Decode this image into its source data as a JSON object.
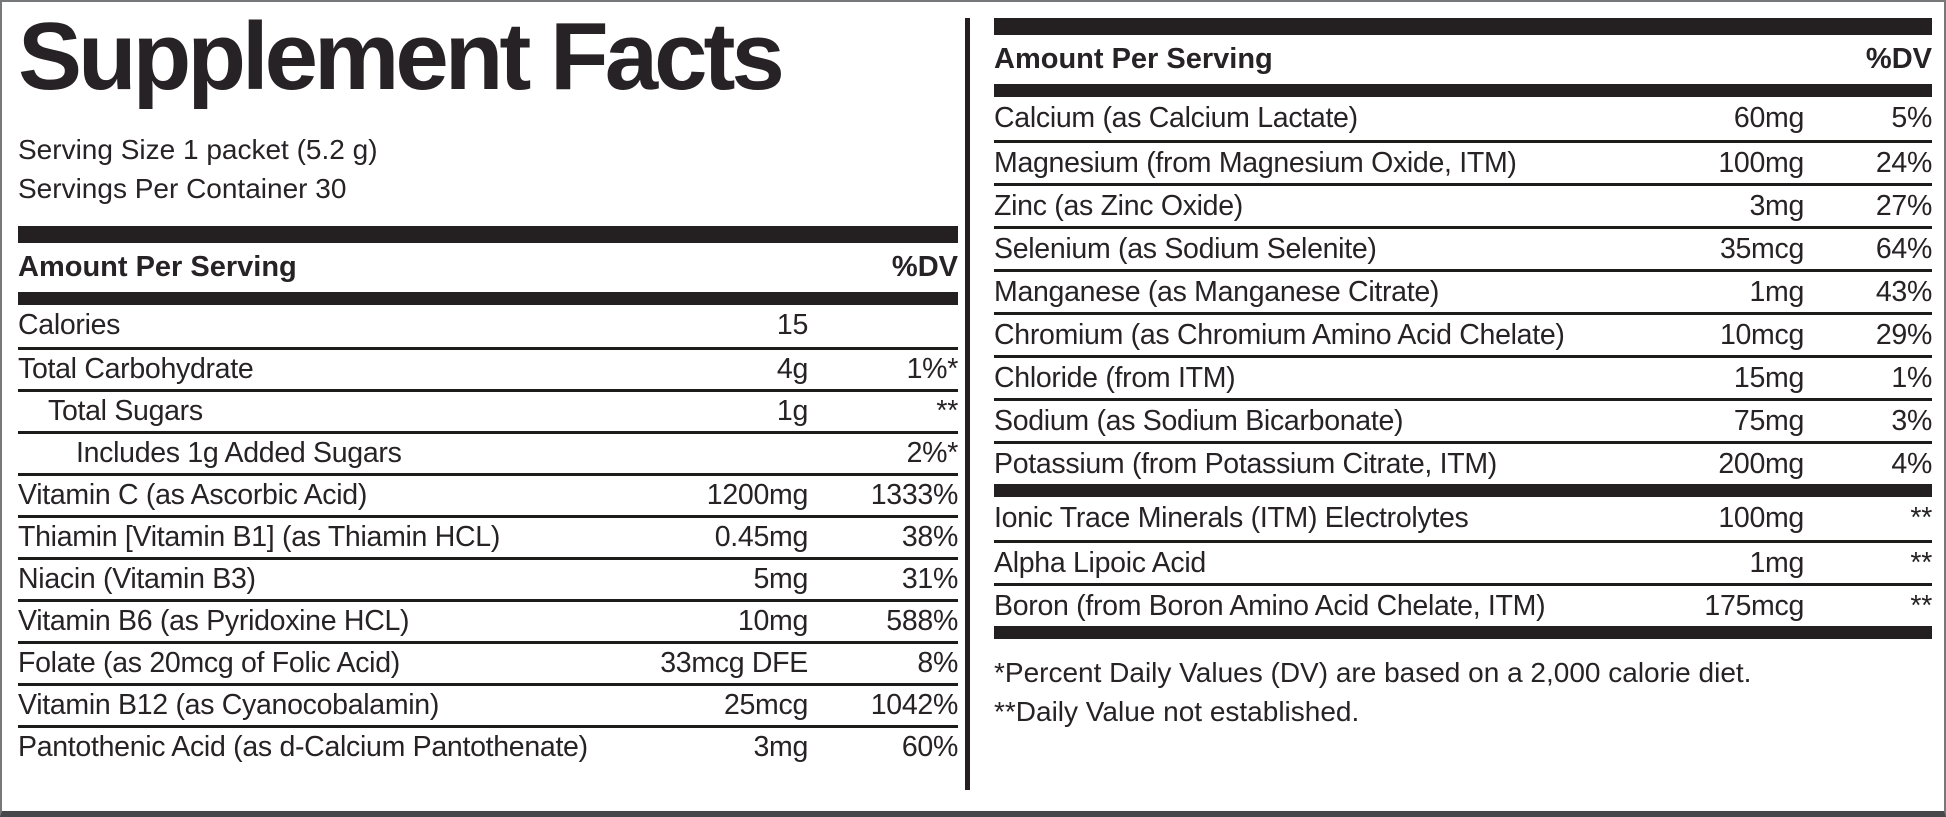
{
  "colors": {
    "background": "#ffffff",
    "text": "#272225",
    "section_bar": "#242021",
    "row_separator": "#1c1c1a",
    "outer_border": "#77787a"
  },
  "title": "Supplement Facts",
  "serving": {
    "size": "Serving Size 1 packet (5.2 g)",
    "per_container": "Servings Per Container 30"
  },
  "left": {
    "header": {
      "amount": "Amount Per Serving",
      "dv": "%DV"
    },
    "rows": [
      {
        "label": "Calories",
        "amount": "15",
        "dv": ""
      },
      {
        "label": "Total Carbohydrate",
        "amount": "4g",
        "dv": "1%*"
      },
      {
        "label": "Total Sugars",
        "amount": "1g",
        "dv": "**"
      },
      {
        "label": "Includes 1g Added Sugars",
        "amount": "",
        "dv": "2%*"
      },
      {
        "label": "Vitamin C (as Ascorbic Acid)",
        "amount": "1200mg",
        "dv": "1333%"
      },
      {
        "label": "Thiamin [Vitamin B1] (as Thiamin HCL)",
        "amount": "0.45mg",
        "dv": "38%"
      },
      {
        "label": "Niacin (Vitamin B3)",
        "amount": "5mg",
        "dv": "31%"
      },
      {
        "label": "Vitamin B6 (as Pyridoxine HCL)",
        "amount": "10mg",
        "dv": "588%"
      },
      {
        "label": "Folate (as 20mcg of Folic Acid)",
        "amount": "33mcg DFE",
        "dv": "8%"
      },
      {
        "label": "Vitamin B12 (as Cyanocobalamin)",
        "amount": "25mcg",
        "dv": "1042%"
      },
      {
        "label": "Pantothenic Acid (as d-Calcium Pantothenate)",
        "amount": "3mg",
        "dv": "60%"
      }
    ]
  },
  "right": {
    "header": {
      "amount": "Amount Per Serving",
      "dv": "%DV"
    },
    "rows_main": [
      {
        "label": "Calcium (as Calcium Lactate)",
        "amount": "60mg",
        "dv": "5%"
      },
      {
        "label": "Magnesium (from Magnesium Oxide, ITM)",
        "amount": "100mg",
        "dv": "24%"
      },
      {
        "label": "Zinc (as Zinc Oxide)",
        "amount": "3mg",
        "dv": "27%"
      },
      {
        "label": "Selenium (as Sodium Selenite)",
        "amount": "35mcg",
        "dv": "64%"
      },
      {
        "label": "Manganese (as Manganese Citrate)",
        "amount": "1mg",
        "dv": "43%"
      },
      {
        "label": "Chromium (as Chromium Amino Acid Chelate)",
        "amount": "10mcg",
        "dv": "29%"
      },
      {
        "label": "Chloride (from ITM)",
        "amount": "15mg",
        "dv": "1%"
      },
      {
        "label": "Sodium (as Sodium Bicarbonate)",
        "amount": "75mg",
        "dv": "3%"
      },
      {
        "label": "Potassium (from Potassium Citrate, ITM)",
        "amount": "200mg",
        "dv": "4%"
      }
    ],
    "rows_secondary": [
      {
        "label": "Ionic Trace Minerals (ITM) Electrolytes",
        "amount": "100mg",
        "dv": "**"
      },
      {
        "label": "Alpha Lipoic Acid",
        "amount": "1mg",
        "dv": "**"
      },
      {
        "label": "Boron (from Boron Amino Acid Chelate, ITM)",
        "amount": "175mcg",
        "dv": "**"
      }
    ]
  },
  "footnotes": [
    "*Percent Daily Values (DV) are based on a 2,000 calorie diet.",
    "**Daily Value not established."
  ]
}
